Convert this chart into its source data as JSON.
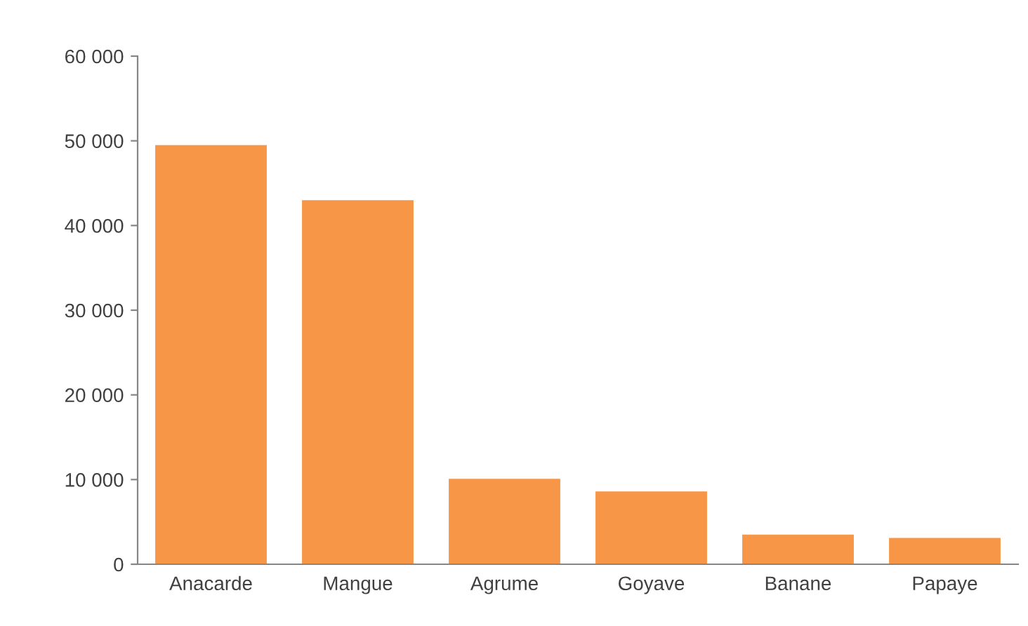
{
  "chart_data": {
    "type": "bar",
    "categories": [
      "Anacarde",
      "Mangue",
      "Agrume",
      "Goyave",
      "Banane",
      "Papaye"
    ],
    "values": [
      49500,
      43000,
      10100,
      8600,
      3500,
      3100
    ],
    "color": "#f79646",
    "ylim": [
      0,
      60000
    ],
    "yticks": [
      {
        "value": 0,
        "label": "0"
      },
      {
        "value": 10000,
        "label": "10 000"
      },
      {
        "value": 20000,
        "label": "20 000"
      },
      {
        "value": 30000,
        "label": "30 000"
      },
      {
        "value": 40000,
        "label": "40 000"
      },
      {
        "value": 50000,
        "label": "50 000"
      },
      {
        "value": 60000,
        "label": "60 000"
      }
    ],
    "grid": false,
    "legend": false
  }
}
